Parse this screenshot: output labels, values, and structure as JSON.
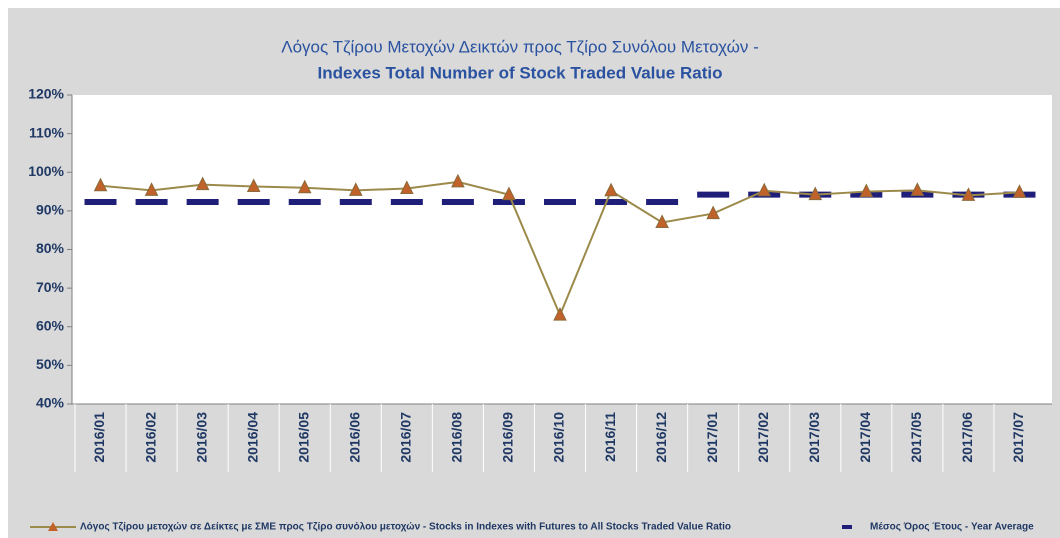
{
  "chart_data": {
    "type": "line",
    "title": "Λόγος Τζίρου Μετοχών Δεικτών προς Τζίρο Συνόλου Μετοχών -",
    "subtitle": "Indexes Total Number of Stock Traded Value Ratio",
    "categories": [
      "2016/01",
      "2016/02",
      "2016/03",
      "2016/04",
      "2016/05",
      "2016/06",
      "2016/07",
      "2016/08",
      "2016/09",
      "2016/10",
      "2016/11",
      "2016/12",
      "2017/01",
      "2017/02",
      "2017/03",
      "2017/04",
      "2017/05",
      "2017/06",
      "2017/07"
    ],
    "series": [
      {
        "name": "Λόγος Τζίρου μετοχών σε Δείκτες με ΣΜΕ προς Τζίρο συνόλου μετοχών - Stocks in Indexes with Futures to All Stocks Traded Value Ratio",
        "color": "#9c8a4a",
        "marker_color": "#c0622a",
        "values": [
          96.5,
          95.3,
          96.8,
          96.3,
          96.0,
          95.3,
          95.8,
          97.5,
          94.2,
          63.0,
          95.2,
          87.0,
          89.3,
          95.2,
          94.2,
          95.0,
          95.3,
          94.0,
          94.8
        ]
      },
      {
        "name": "Μέσος Όρος Έτους - Year Average",
        "color": "#1f1f7a",
        "values": [
          92.3,
          92.3,
          92.3,
          92.3,
          92.3,
          92.3,
          92.3,
          92.3,
          92.3,
          92.3,
          92.3,
          92.3,
          94.2,
          94.2,
          94.2,
          94.2,
          94.2,
          94.2,
          94.2
        ]
      }
    ],
    "ylim": [
      40,
      120
    ],
    "yticks": [
      {
        "value": 40,
        "label": "40%"
      },
      {
        "value": 50,
        "label": "50%"
      },
      {
        "value": 60,
        "label": "60%"
      },
      {
        "value": 70,
        "label": "70%"
      },
      {
        "value": 80,
        "label": "80%"
      },
      {
        "value": 90,
        "label": "90%"
      },
      {
        "value": 100,
        "label": "100%"
      },
      {
        "value": 110,
        "label": "110%"
      },
      {
        "value": 120,
        "label": "120%"
      }
    ],
    "grid": false,
    "legend": "bottom",
    "title_color": "#2a52a0"
  }
}
